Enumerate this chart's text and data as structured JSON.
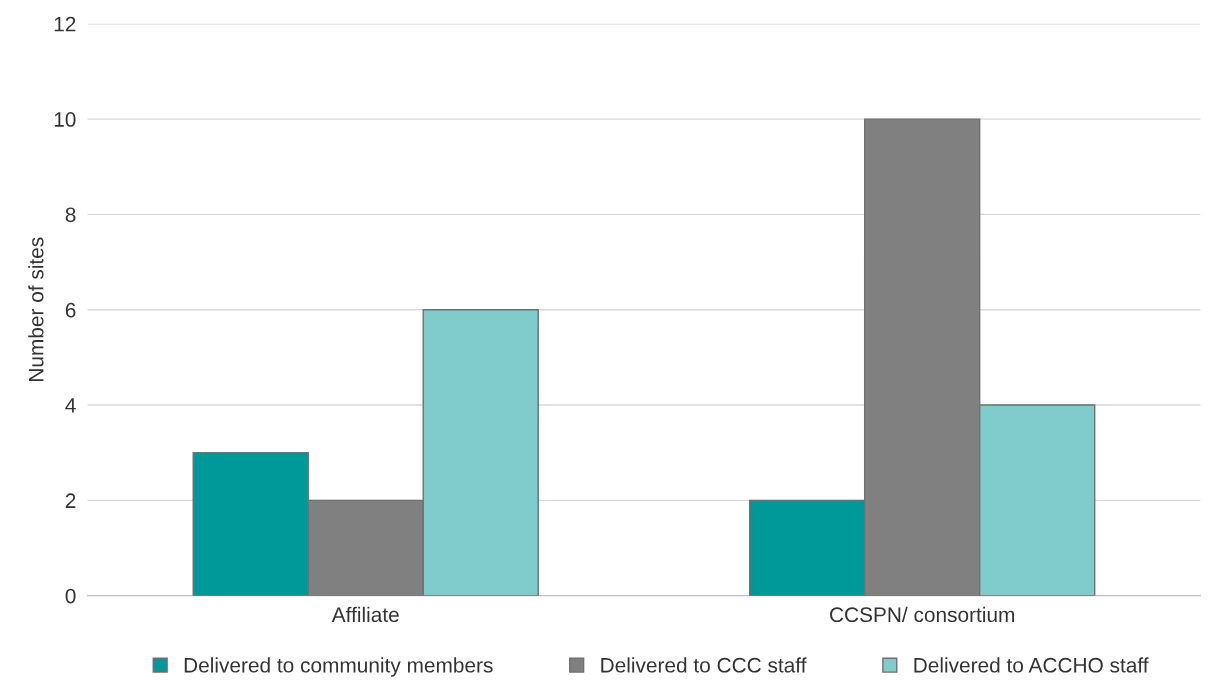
{
  "chart_data": {
    "type": "bar",
    "ylabel": "Number of sites",
    "categories": [
      "Affiliate",
      "CCSPN/ consortium"
    ],
    "series": [
      {
        "name": "Delivered to community members",
        "color": "#009999",
        "values": [
          3,
          2
        ]
      },
      {
        "name": "Delivered to CCC staff",
        "color": "#808080",
        "values": [
          2,
          10
        ]
      },
      {
        "name": "Delivered to ACCHO staff",
        "color": "#80cccc",
        "values": [
          6,
          4
        ]
      }
    ],
    "ylim": [
      0,
      12
    ],
    "yticks": [
      0,
      2,
      4,
      6,
      8,
      10,
      12
    ],
    "grid": "y",
    "legend": "bottom"
  }
}
